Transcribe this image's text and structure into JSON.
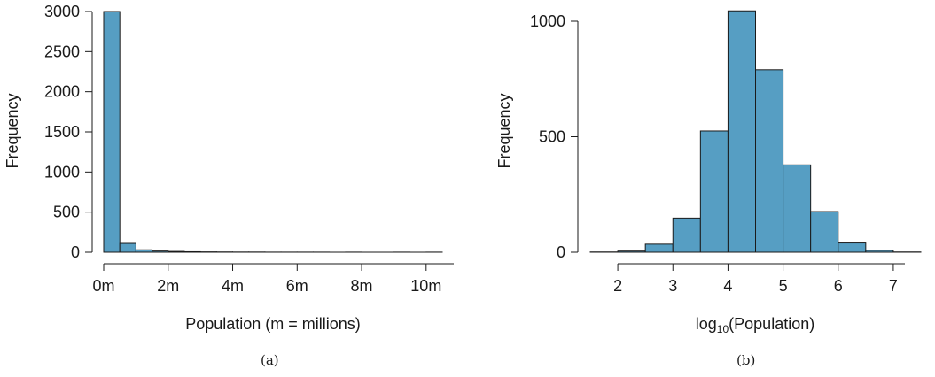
{
  "colors": {
    "bar_fill": "#569EC3",
    "bar_stroke": "#1a1a1a",
    "axis": "#1a1a1a"
  },
  "chart_data": [
    {
      "type": "bar",
      "panel": "(a)",
      "xlabel": "Population (m = millions)",
      "ylabel": "Frequency",
      "xlim": [
        0,
        10.5
      ],
      "ylim": [
        0,
        3000
      ],
      "xticks": [
        0,
        2,
        4,
        6,
        8,
        10
      ],
      "xtick_labels": [
        "0m",
        "2m",
        "4m",
        "6m",
        "8m",
        "10m"
      ],
      "yticks": [
        0,
        500,
        1000,
        1500,
        2000,
        2500,
        3000
      ],
      "ytick_labels": [
        "0",
        "500",
        "1000",
        "1500",
        "2000",
        "2500",
        "3000"
      ],
      "bin_width": 0.5,
      "bin_starts": [
        0,
        0.5,
        1,
        1.5,
        2,
        2.5,
        3,
        3.5,
        4,
        4.5,
        5,
        5.5,
        6,
        6.5,
        7,
        7.5,
        8,
        8.5,
        9,
        9.5,
        10
      ],
      "values": [
        3000,
        110,
        30,
        15,
        10,
        6,
        4,
        3,
        2,
        2,
        1,
        1,
        1,
        1,
        0,
        1,
        0,
        0,
        1,
        0,
        1
      ],
      "grid": false,
      "legend": "none"
    },
    {
      "type": "bar",
      "panel": "(b)",
      "xlabel": "log10(Population)",
      "xlabel_parts": {
        "pre": "log",
        "sub": "10",
        "post": "(Population)"
      },
      "ylabel": "Frequency",
      "xlim": [
        1.5,
        7.5
      ],
      "ylim": [
        0,
        1000
      ],
      "xticks": [
        2,
        3,
        4,
        5,
        6,
        7
      ],
      "xtick_labels": [
        "2",
        "3",
        "4",
        "5",
        "6",
        "7"
      ],
      "yticks": [
        0,
        500,
        1000
      ],
      "ytick_labels": [
        "0",
        "500",
        "1000"
      ],
      "bin_width": 0.5,
      "bin_starts": [
        1.5,
        2,
        2.5,
        3,
        3.5,
        4,
        4.5,
        5,
        5.5,
        6,
        6.5,
        7
      ],
      "values": [
        1,
        5,
        35,
        148,
        525,
        1045,
        790,
        378,
        176,
        40,
        8,
        1
      ],
      "grid": false,
      "legend": "none"
    }
  ]
}
